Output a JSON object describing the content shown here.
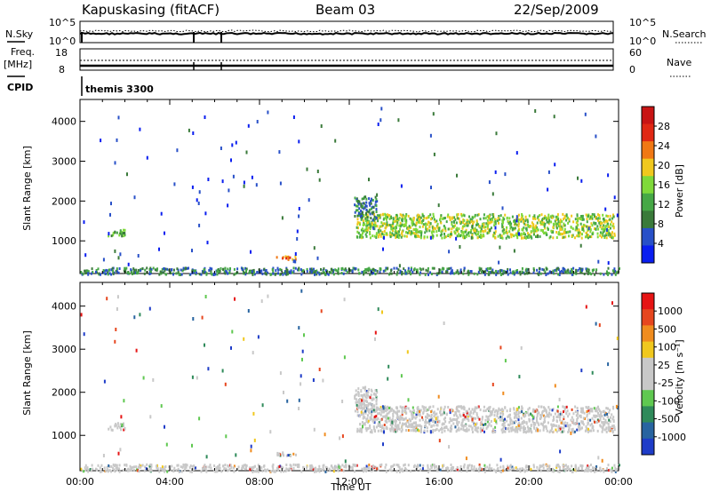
{
  "header": {
    "station": "Kapuskasing (fitACF)",
    "beam": "Beam 03",
    "date": "22/Sep/2009"
  },
  "panels": {
    "noise": {
      "left_label": "N.Sky",
      "left_ticks": [
        "10^5",
        "10^0"
      ],
      "right_label": "N.Search",
      "right_ticks": [
        "10^5",
        "10^0"
      ]
    },
    "freq": {
      "left_label_1": "Freq.",
      "left_label_2": "[MHz]",
      "left_ticks": [
        "18",
        "8"
      ],
      "right_label": "Nave",
      "right_ticks": [
        "60",
        "0"
      ]
    },
    "cpid": {
      "label": "CPID",
      "value": "themis 3300"
    }
  },
  "colors": {
    "power_scale": [
      "#0a1ef0",
      "#2850c8",
      "#3a7a3a",
      "#46a846",
      "#7fd93a",
      "#f0c81e",
      "#f07814",
      "#e02814",
      "#c81414"
    ],
    "velocity_scale": [
      "#1e3cc8",
      "#2864a0",
      "#2f8a5a",
      "#5fc850",
      "#c8c8c8",
      "#c8c8c8",
      "#f0c81e",
      "#f08c1e",
      "#e6461e",
      "#e61414"
    ],
    "noise_trace": "#000000"
  },
  "chart_data": [
    {
      "type": "heatmap",
      "name": "power",
      "ylabel": "Slant Range [km]",
      "ylim": [
        180,
        4550
      ],
      "y_ticks": [
        1000,
        2000,
        3000,
        4000
      ],
      "xlim_hours": [
        0,
        24
      ],
      "colorbar_label": "Power [dB]",
      "colorbar_ticks": [
        "28",
        "24",
        "20",
        "16",
        "12",
        "8",
        "4"
      ],
      "echo_regions": [
        {
          "t0": 1.2,
          "t1": 2.0,
          "r0": 1150,
          "r1": 1320,
          "level": 3
        },
        {
          "t0": 12.3,
          "t1": 23.8,
          "r0": 1100,
          "r1": 1700,
          "level": 4
        },
        {
          "t0": 12.2,
          "t1": 13.2,
          "r0": 1550,
          "r1": 2150,
          "level": 2
        },
        {
          "t0": 8.7,
          "t1": 9.6,
          "r0": 550,
          "r1": 650,
          "level": 6
        },
        {
          "t0": 0.0,
          "t1": 24.0,
          "r0": 180,
          "r1": 350,
          "level": 2
        }
      ]
    },
    {
      "type": "heatmap",
      "name": "velocity",
      "xlabel": "Time UT",
      "ylabel": "Slant Range [km]",
      "ylim": [
        180,
        4550
      ],
      "y_ticks": [
        1000,
        2000,
        3000,
        4000
      ],
      "x_ticks": [
        "00:00",
        "04:00",
        "08:00",
        "12:00",
        "16:00",
        "20:00",
        "00:00"
      ],
      "colorbar_label": "Velocity [m s⁻¹]",
      "colorbar_ticks": [
        "1000",
        "500",
        "100",
        "25",
        "-25",
        "-100",
        "-500",
        "-1000"
      ]
    }
  ]
}
